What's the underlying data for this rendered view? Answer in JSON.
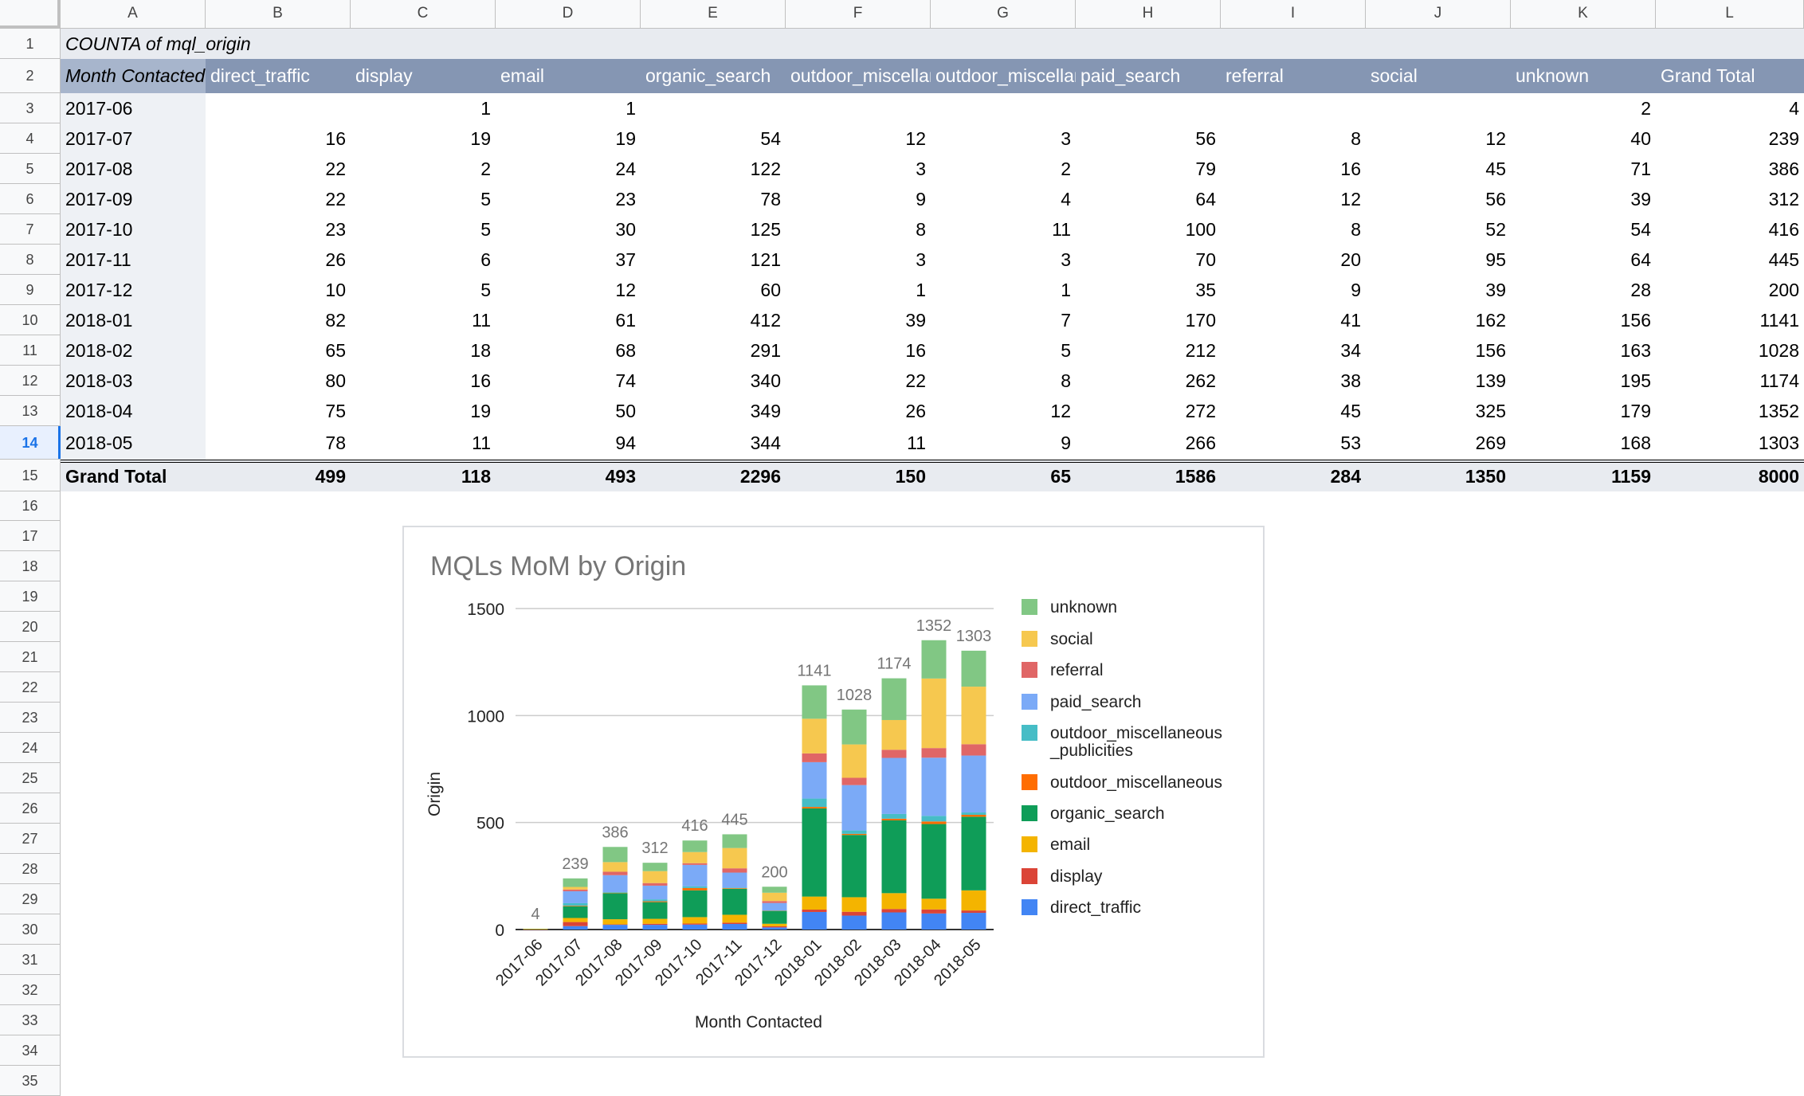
{
  "sheet": {
    "column_letters": [
      "A",
      "B",
      "C",
      "D",
      "E",
      "F",
      "G",
      "H",
      "I",
      "J",
      "K",
      "L"
    ],
    "row_numbers": [
      "1",
      "2",
      "3",
      "4",
      "5",
      "6",
      "7",
      "8",
      "9",
      "10",
      "11",
      "12",
      "13",
      "14",
      "15",
      "16",
      "17",
      "18",
      "19",
      "20",
      "21",
      "22",
      "23",
      "24",
      "25",
      "26",
      "27",
      "28",
      "29",
      "30",
      "31",
      "32",
      "33",
      "34",
      "35"
    ],
    "selected_row": "14"
  },
  "pivot": {
    "title": "COUNTA of mql_origin",
    "row_header": "Month Contacted",
    "columns": [
      "direct_traffic",
      "display",
      "email",
      "organic_search",
      "outdoor_miscellaneous_publicities",
      "outdoor_miscellaneous",
      "paid_search",
      "referral",
      "social",
      "unknown",
      "Grand Total"
    ],
    "rows": [
      {
        "month": "2017-06",
        "values": [
          "",
          "1",
          "1",
          "",
          "",
          "",
          "",
          "",
          "",
          "2",
          "4"
        ]
      },
      {
        "month": "2017-07",
        "values": [
          "16",
          "19",
          "19",
          "54",
          "12",
          "3",
          "56",
          "8",
          "12",
          "40",
          "239"
        ]
      },
      {
        "month": "2017-08",
        "values": [
          "22",
          "2",
          "24",
          "122",
          "3",
          "2",
          "79",
          "16",
          "45",
          "71",
          "386"
        ]
      },
      {
        "month": "2017-09",
        "values": [
          "22",
          "5",
          "23",
          "78",
          "9",
          "4",
          "64",
          "12",
          "56",
          "39",
          "312"
        ]
      },
      {
        "month": "2017-10",
        "values": [
          "23",
          "5",
          "30",
          "125",
          "8",
          "11",
          "100",
          "8",
          "52",
          "54",
          "416"
        ]
      },
      {
        "month": "2017-11",
        "values": [
          "26",
          "6",
          "37",
          "121",
          "3",
          "3",
          "70",
          "20",
          "95",
          "64",
          "445"
        ]
      },
      {
        "month": "2017-12",
        "values": [
          "10",
          "5",
          "12",
          "60",
          "1",
          "1",
          "35",
          "9",
          "39",
          "28",
          "200"
        ]
      },
      {
        "month": "2018-01",
        "values": [
          "82",
          "11",
          "61",
          "412",
          "39",
          "7",
          "170",
          "41",
          "162",
          "156",
          "1141"
        ]
      },
      {
        "month": "2018-02",
        "values": [
          "65",
          "18",
          "68",
          "291",
          "16",
          "5",
          "212",
          "34",
          "156",
          "163",
          "1028"
        ]
      },
      {
        "month": "2018-03",
        "values": [
          "80",
          "16",
          "74",
          "340",
          "22",
          "8",
          "262",
          "38",
          "139",
          "195",
          "1174"
        ]
      },
      {
        "month": "2018-04",
        "values": [
          "75",
          "19",
          "50",
          "349",
          "26",
          "12",
          "272",
          "45",
          "325",
          "179",
          "1352"
        ]
      },
      {
        "month": "2018-05",
        "values": [
          "78",
          "11",
          "94",
          "344",
          "11",
          "9",
          "266",
          "53",
          "269",
          "168",
          "1303"
        ]
      }
    ],
    "grand_total_label": "Grand Total",
    "grand_total_values": [
      "499",
      "118",
      "493",
      "2296",
      "150",
      "65",
      "1586",
      "284",
      "1350",
      "1159",
      "8000"
    ]
  },
  "chart_data": {
    "type": "bar",
    "stacked": true,
    "title": "MQLs MoM by Origin",
    "xlabel": "Month Contacted",
    "ylabel": "Origin",
    "ylim": [
      0,
      1500
    ],
    "yticks": [
      "0",
      "500",
      "1000",
      "1500"
    ],
    "categories": [
      "2017-06",
      "2017-07",
      "2017-08",
      "2017-09",
      "2017-10",
      "2017-11",
      "2017-12",
      "2018-01",
      "2018-02",
      "2018-03",
      "2018-04",
      "2018-05"
    ],
    "totals": [
      4,
      239,
      386,
      312,
      416,
      445,
      200,
      1141,
      1028,
      1174,
      1352,
      1303
    ],
    "legend_position": "right",
    "series": [
      {
        "name": "direct_traffic",
        "color": "#4285f4",
        "values": [
          0,
          16,
          22,
          22,
          23,
          26,
          10,
          82,
          65,
          80,
          75,
          78
        ]
      },
      {
        "name": "display",
        "color": "#db4437",
        "values": [
          1,
          19,
          2,
          5,
          5,
          6,
          5,
          11,
          18,
          16,
          19,
          11
        ]
      },
      {
        "name": "email",
        "color": "#f4b400",
        "values": [
          1,
          19,
          24,
          23,
          30,
          37,
          12,
          61,
          68,
          74,
          50,
          94
        ]
      },
      {
        "name": "organic_search",
        "color": "#0f9d58",
        "values": [
          0,
          54,
          122,
          78,
          125,
          121,
          60,
          412,
          291,
          340,
          349,
          344
        ]
      },
      {
        "name": "outdoor_miscellaneous",
        "color": "#ff6d01",
        "values": [
          0,
          3,
          2,
          4,
          11,
          3,
          1,
          7,
          5,
          8,
          12,
          9
        ]
      },
      {
        "name": "outdoor_miscellaneous_publicities",
        "color": "#46bdc6",
        "values": [
          0,
          12,
          3,
          9,
          8,
          3,
          1,
          39,
          16,
          22,
          26,
          11
        ]
      },
      {
        "name": "paid_search",
        "color": "#7baaf7",
        "values": [
          0,
          56,
          79,
          64,
          100,
          70,
          35,
          170,
          212,
          262,
          272,
          266
        ]
      },
      {
        "name": "referral",
        "color": "#e06666",
        "values": [
          0,
          8,
          16,
          12,
          8,
          20,
          9,
          41,
          34,
          38,
          45,
          53
        ]
      },
      {
        "name": "social",
        "color": "#f6c84f",
        "values": [
          0,
          12,
          45,
          56,
          52,
          95,
          39,
          162,
          156,
          139,
          325,
          269
        ]
      },
      {
        "name": "unknown",
        "color": "#81c784",
        "values": [
          2,
          40,
          71,
          39,
          54,
          64,
          28,
          156,
          163,
          195,
          179,
          168
        ]
      }
    ],
    "legend": [
      {
        "label": "unknown",
        "color": "#81c784"
      },
      {
        "label": "social",
        "color": "#f6c84f"
      },
      {
        "label": "referral",
        "color": "#e06666"
      },
      {
        "label": "paid_search",
        "color": "#7baaf7"
      },
      {
        "label": "outdoor_miscellaneous",
        "label2": "_publicities",
        "color": "#46bdc6"
      },
      {
        "label": "outdoor_miscellaneous",
        "color": "#ff6d01"
      },
      {
        "label": "organic_search",
        "color": "#0f9d58"
      },
      {
        "label": "email",
        "color": "#f4b400"
      },
      {
        "label": "display",
        "color": "#db4437"
      },
      {
        "label": "direct_traffic",
        "color": "#4285f4"
      }
    ]
  }
}
